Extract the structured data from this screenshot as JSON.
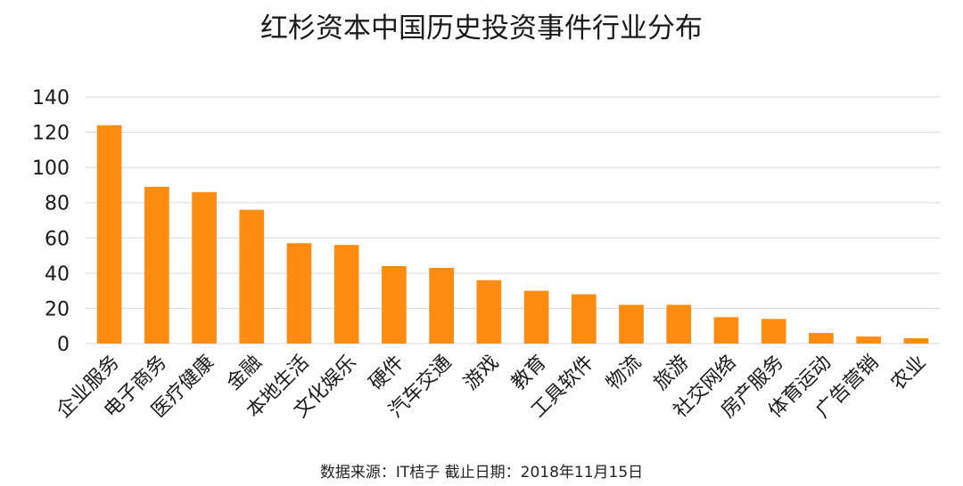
{
  "chart_data": {
    "type": "bar",
    "title": "红杉资本中国历史投资事件行业分布",
    "categories": [
      "企业服务",
      "电子商务",
      "医疗健康",
      "金融",
      "本地生活",
      "文化娱乐",
      "硬件",
      "汽车交通",
      "游戏",
      "教育",
      "工具软件",
      "物流",
      "旅游",
      "社交网络",
      "房产服务",
      "体育运动",
      "广告营销",
      "农业"
    ],
    "values": [
      124,
      89,
      86,
      76,
      57,
      56,
      44,
      43,
      36,
      30,
      28,
      22,
      22,
      15,
      14,
      6,
      4,
      3
    ],
    "xlabel": "",
    "ylabel": "",
    "ylim": [
      0,
      140
    ],
    "yticks": [
      0,
      20,
      40,
      60,
      80,
      100,
      120,
      140
    ],
    "grid": true,
    "legend": "none",
    "bar_color": "#FF8C11",
    "grid_color": "#D9D9D9"
  },
  "source_note": "数据来源：IT桔子    截止日期：2018年11月15日"
}
